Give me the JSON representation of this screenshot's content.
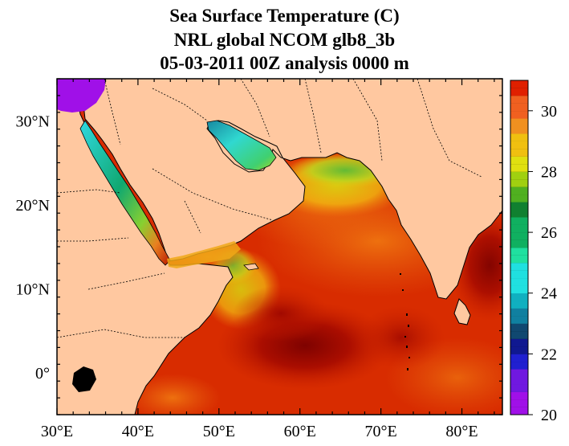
{
  "title": {
    "line1": "Sea Surface Temperature (C)",
    "line2": "NRL global NCOM glb8_3b",
    "line3": "05-03-2011 00Z analysis   0000 m"
  },
  "map": {
    "lon_range": [
      30,
      85
    ],
    "lat_range": [
      -5,
      35
    ],
    "lon_ticks": [
      {
        "value": 30,
        "label": "30°E"
      },
      {
        "value": 40,
        "label": "40°E"
      },
      {
        "value": 50,
        "label": "50°E"
      },
      {
        "value": 60,
        "label": "60°E"
      },
      {
        "value": 70,
        "label": "70°E"
      },
      {
        "value": 80,
        "label": "80°E"
      }
    ],
    "lat_ticks": [
      {
        "value": 30,
        "label": "30°N"
      },
      {
        "value": 20,
        "label": "20°N"
      },
      {
        "value": 10,
        "label": "10°N"
      },
      {
        "value": 0,
        "label": "0°"
      }
    ],
    "land_color": "#ffc8a0"
  },
  "colorbar": {
    "min": 20,
    "max": 31,
    "labels": [
      {
        "value": 20,
        "label": "20"
      },
      {
        "value": 22,
        "label": "22"
      },
      {
        "value": 24,
        "label": "24"
      },
      {
        "value": 26,
        "label": "26"
      },
      {
        "value": 28,
        "label": "28"
      },
      {
        "value": 30,
        "label": "30"
      }
    ]
  }
}
